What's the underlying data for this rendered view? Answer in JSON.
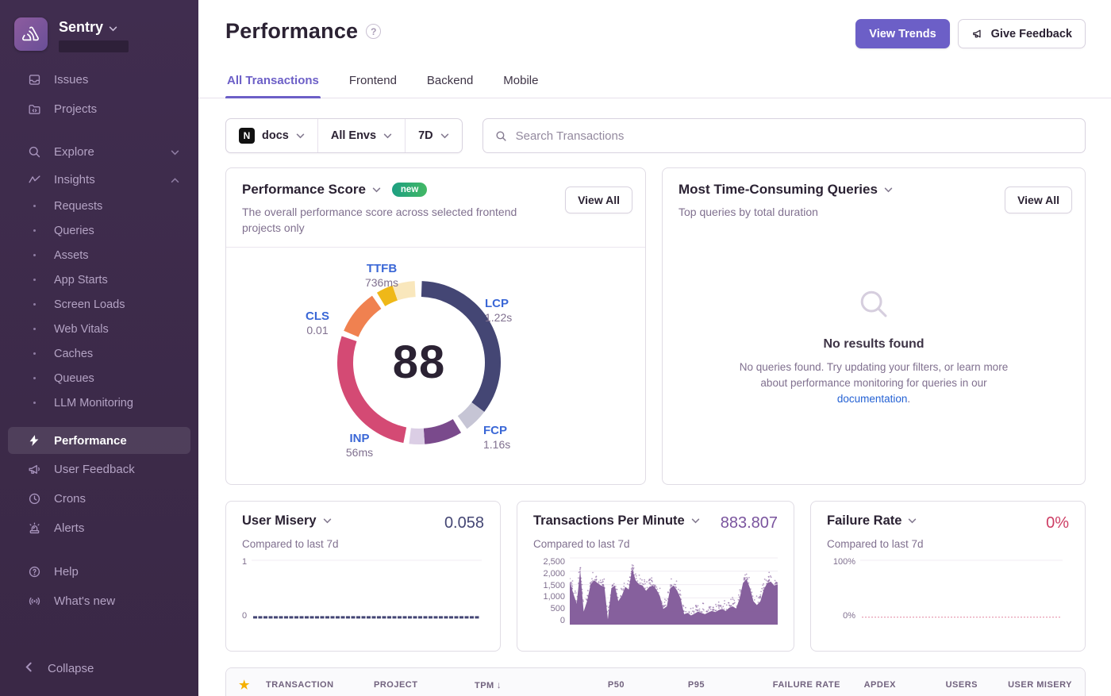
{
  "colors": {
    "accent_purple": "#6C5FC7",
    "sidebar_bg": "#3C2A49",
    "ring_lcp": "#444674",
    "ring_lcp_rest": "#C6C5D5",
    "ring_fcp": "#7A4A8C",
    "ring_fcp_rest": "#DBCEE5",
    "ring_inp": "#D44A74",
    "ring_cls": "#F08150",
    "ring_ttfb": "#EFB818",
    "ring_ttfb_rest": "#F9E7BC",
    "vital_label_blue": "#3A67D6",
    "user_misery_value": "#444674",
    "tpm_value": "#7A549E",
    "failure_value": "#CD3D64",
    "badge_gradient": "#1D9F82 to #43B865",
    "star_gold": "#F5B000"
  },
  "sidebar": {
    "org_name": "Sentry",
    "primary": [
      {
        "label": "Issues",
        "icon": "issues-icon"
      },
      {
        "label": "Projects",
        "icon": "projects-icon"
      }
    ],
    "groups": [
      {
        "label": "Explore",
        "icon": "search-icon",
        "chevron": "down",
        "children": []
      },
      {
        "label": "Insights",
        "icon": "insights-icon",
        "chevron": "up",
        "children": [
          "Requests",
          "Queries",
          "Assets",
          "App Starts",
          "Screen Loads",
          "Web Vitals",
          "Caches",
          "Queues",
          "LLM Monitoring"
        ]
      }
    ],
    "secondary": [
      {
        "label": "Performance",
        "icon": "lightning-icon",
        "active": true
      },
      {
        "label": "User Feedback",
        "icon": "megaphone-icon"
      },
      {
        "label": "Crons",
        "icon": "clock-icon"
      },
      {
        "label": "Alerts",
        "icon": "siren-icon"
      }
    ],
    "tertiary": [
      {
        "label": "Help",
        "icon": "help-icon"
      },
      {
        "label": "What's new",
        "icon": "broadcast-icon"
      }
    ],
    "collapse_label": "Collapse"
  },
  "header": {
    "title": "Performance",
    "view_trends_label": "View Trends",
    "give_feedback_label": "Give Feedback",
    "tabs": [
      {
        "label": "All Transactions",
        "active": true
      },
      {
        "label": "Frontend",
        "active": false
      },
      {
        "label": "Backend",
        "active": false
      },
      {
        "label": "Mobile",
        "active": false
      }
    ]
  },
  "filters": {
    "project": "docs",
    "project_icon": "N",
    "environment": "All Envs",
    "date_range": "7D",
    "search_placeholder": "Search Transactions"
  },
  "performance_score": {
    "title": "Performance Score",
    "badge": "new",
    "view_all_label": "View All",
    "subtitle": "The overall performance score across selected frontend projects only",
    "score": "88",
    "vitals": [
      {
        "label": "TTFB",
        "value": "736ms"
      },
      {
        "label": "LCP",
        "value": "1.22s"
      },
      {
        "label": "CLS",
        "value": "0.01"
      },
      {
        "label": "INP",
        "value": "56ms"
      },
      {
        "label": "FCP",
        "value": "1.16s"
      }
    ]
  },
  "queries_widget": {
    "title": "Most Time-Consuming Queries",
    "subtitle": "Top queries by total duration",
    "view_all_label": "View All",
    "empty_title": "No results found",
    "empty_body_1": "No queries found. Try updating your filters, or learn more about performance monitoring for queries in our ",
    "empty_link": "documentation",
    "empty_body_2": "."
  },
  "metric_cards": [
    {
      "title": "User Misery",
      "subtitle": "Compared to last 7d",
      "value": "0.058"
    },
    {
      "title": "Transactions Per Minute",
      "subtitle": "Compared to last 7d",
      "value": "883.807"
    },
    {
      "title": "Failure Rate",
      "subtitle": "Compared to last 7d",
      "value": "0%"
    }
  ],
  "table": {
    "star_icon": "★",
    "columns": [
      "TRANSACTION",
      "PROJECT",
      "TPM",
      "P50",
      "P95",
      "FAILURE RATE",
      "APDEX",
      "USERS",
      "USER MISERY"
    ],
    "sorted_column": "TPM",
    "sort_direction": "desc"
  },
  "chart_data": [
    {
      "id": "performance_score_ring",
      "type": "pie",
      "title": "Performance Score",
      "center_value": 88,
      "segments": [
        {
          "name": "LCP",
          "display_value": "1.22s",
          "color": "#444674",
          "start_deg": 2,
          "end_deg": 127
        },
        {
          "name": "LCP-remainder",
          "color": "#C6C5D5",
          "start_deg": 127,
          "end_deg": 144
        },
        {
          "name": "FCP",
          "display_value": "1.16s",
          "color": "#7A4A8C",
          "start_deg": 149,
          "end_deg": 176
        },
        {
          "name": "FCP-remainder",
          "color": "#DBCEE5",
          "start_deg": 176,
          "end_deg": 187
        },
        {
          "name": "INP",
          "display_value": "56ms",
          "color": "#D44A74",
          "start_deg": 191,
          "end_deg": 289
        },
        {
          "name": "CLS",
          "display_value": "0.01",
          "color": "#F08150",
          "start_deg": 293,
          "end_deg": 325
        },
        {
          "name": "TTFB",
          "display_value": "736ms",
          "color": "#EFB818",
          "start_deg": 329,
          "end_deg": 341
        },
        {
          "name": "TTFB-remainder",
          "color": "#F9E7BC",
          "start_deg": 341,
          "end_deg": 357
        }
      ]
    },
    {
      "id": "user_misery_trend",
      "type": "line",
      "title": "User Misery",
      "current_value": 0.058,
      "ylim": [
        0,
        1
      ],
      "yticks": [
        "1",
        "0"
      ],
      "flat_value": 0.015,
      "line_color": "#444674"
    },
    {
      "id": "transactions_per_minute",
      "type": "area",
      "title": "Transactions Per Minute",
      "current_value": 883.807,
      "ylim": [
        0,
        2500
      ],
      "yticks": [
        "2,500",
        "2,000",
        "1,500",
        "1,000",
        "500",
        "0"
      ],
      "area_color": "#7C5295",
      "values": [
        1650,
        1200,
        800,
        2100,
        500,
        900,
        1550,
        1700,
        1600,
        1500,
        1450,
        200,
        1400,
        1500,
        900,
        1100,
        1450,
        1350,
        2150,
        1700,
        1550,
        1500,
        1300,
        1450,
        1500,
        1350,
        1100,
        600,
        700,
        1400,
        1500,
        1300,
        1000,
        400,
        450,
        350,
        420,
        500,
        450,
        400,
        470,
        520,
        480,
        560,
        600,
        520,
        650,
        700,
        620,
        1000,
        1600,
        1750,
        1400,
        900,
        750,
        900,
        1350,
        1600,
        1650,
        1500,
        1550
      ]
    },
    {
      "id": "failure_rate_trend",
      "type": "line",
      "title": "Failure Rate",
      "current_value": 0,
      "ylim": [
        0,
        100
      ],
      "yticks": [
        "100%",
        "0%"
      ],
      "flat_value": 0.5,
      "line_color": "#E79FB4"
    }
  ]
}
